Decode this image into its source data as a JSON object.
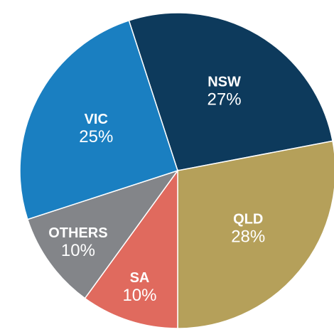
{
  "chart_data": {
    "type": "pie",
    "categories": [
      "NSW",
      "QLD",
      "SA",
      "OTHERS",
      "VIC"
    ],
    "values": [
      27,
      28,
      10,
      10,
      25
    ],
    "value_labels": [
      "27%",
      "28%",
      "10%",
      "10%",
      "25%"
    ],
    "colors": [
      "#0d3a5c",
      "#b5a05a",
      "#e06a5e",
      "#838589",
      "#1a7fc1"
    ]
  }
}
